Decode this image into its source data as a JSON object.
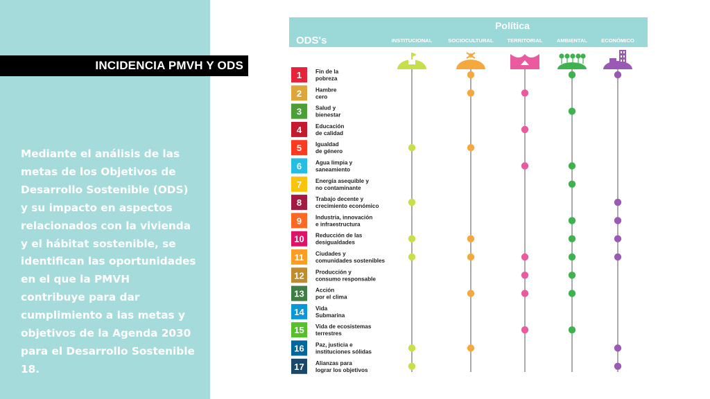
{
  "slide": {
    "title": "INCIDENCIA PMVH Y ODS",
    "body": "Mediante el análisis de las metas de los Objetivos de Desarrollo Sostenible (ODS) y su impacto en aspectos relacionados con la vivienda y el hábitat sostenible, se identifican las oportunidades en el que la PMVH contribuye para dar cumplimiento a las metas y objetivos de la Agenda 2030 para el Desarrollo Sostenible 18."
  },
  "matrix": {
    "header_title": "Política",
    "ods_label": "ODS's",
    "colors": {
      "header_bg": "#9bd8d8",
      "header_text": "#ffffff",
      "label_text": "#222222",
      "line": "#555555"
    },
    "columns": [
      {
        "label": "INSTITUCIONAL",
        "icon": "institutional-building-icon",
        "color": "#c5e04b"
      },
      {
        "label": "SOCIOCULTURAL",
        "icon": "people-culture-icon",
        "color": "#f5a83e"
      },
      {
        "label": "TERRITORIAL",
        "icon": "territory-map-icon",
        "color": "#ea5a9e"
      },
      {
        "label": "AMBIENTAL",
        "icon": "trees-environment-icon",
        "color": "#3fb24f"
      },
      {
        "label": "ECONÓMICO",
        "icon": "city-economy-icon",
        "color": "#9b59b6"
      }
    ],
    "goals": [
      {
        "number": "1",
        "line1": "Fin de la",
        "line2": "pobreza",
        "color": "#e5243b",
        "marks": [
          false,
          true,
          false,
          true,
          true
        ]
      },
      {
        "number": "2",
        "line1": "Hambre",
        "line2": "cero",
        "color": "#dda63a",
        "marks": [
          false,
          true,
          true,
          false,
          false
        ]
      },
      {
        "number": "3",
        "line1": "Salud y",
        "line2": "bienestar",
        "color": "#4c9f38",
        "marks": [
          false,
          false,
          false,
          true,
          false
        ]
      },
      {
        "number": "4",
        "line1": "Educación",
        "line2": "de calidad",
        "color": "#c5192d",
        "marks": [
          false,
          false,
          true,
          false,
          false
        ]
      },
      {
        "number": "5",
        "line1": "Igualdad",
        "line2": "de género",
        "color": "#ff3a21",
        "marks": [
          true,
          true,
          false,
          false,
          false
        ]
      },
      {
        "number": "6",
        "line1": "Agua limpia y",
        "line2": "saneamiento",
        "color": "#26bde2",
        "marks": [
          false,
          false,
          true,
          true,
          false
        ]
      },
      {
        "number": "7",
        "line1": "Energía asequible y",
        "line2": "no contaminante",
        "color": "#fcc30b",
        "marks": [
          false,
          false,
          false,
          true,
          false
        ]
      },
      {
        "number": "8",
        "line1": "Trabajo decente y",
        "line2": "crecimiento económico",
        "color": "#a21942",
        "marks": [
          true,
          false,
          false,
          false,
          true
        ]
      },
      {
        "number": "9",
        "line1": "Industria, innovación",
        "line2": "e infraestructura",
        "color": "#fd6925",
        "marks": [
          false,
          false,
          false,
          true,
          true
        ]
      },
      {
        "number": "10",
        "line1": "Reducción de las",
        "line2": "desigualdades",
        "color": "#dd1367",
        "marks": [
          true,
          true,
          false,
          true,
          true
        ]
      },
      {
        "number": "11",
        "line1": "Ciudades y",
        "line2": "comunidades sostenibles",
        "color": "#fd9d24",
        "marks": [
          true,
          true,
          true,
          true,
          true
        ]
      },
      {
        "number": "12",
        "line1": "Producción y",
        "line2": "consumo responsable",
        "color": "#bf8b2e",
        "marks": [
          false,
          false,
          true,
          true,
          false
        ]
      },
      {
        "number": "13",
        "line1": "Acción",
        "line2": "por el clima",
        "color": "#3f7e44",
        "marks": [
          false,
          true,
          true,
          true,
          false
        ]
      },
      {
        "number": "14",
        "line1": "Vida",
        "line2": "Submarina",
        "color": "#0a97d9",
        "marks": [
          false,
          false,
          false,
          false,
          false
        ]
      },
      {
        "number": "15",
        "line1": "Vida de ecosistemas",
        "line2": "terrestres",
        "color": "#56c02b",
        "marks": [
          false,
          false,
          true,
          true,
          false
        ]
      },
      {
        "number": "16",
        "line1": "Paz, justicia e",
        "line2": "instituciones sólidas",
        "color": "#00689d",
        "marks": [
          true,
          true,
          false,
          false,
          true
        ]
      },
      {
        "number": "17",
        "line1": "Alianzas para",
        "line2": "lograr los objetivos",
        "color": "#19486a",
        "marks": [
          true,
          false,
          false,
          false,
          true
        ]
      }
    ]
  }
}
